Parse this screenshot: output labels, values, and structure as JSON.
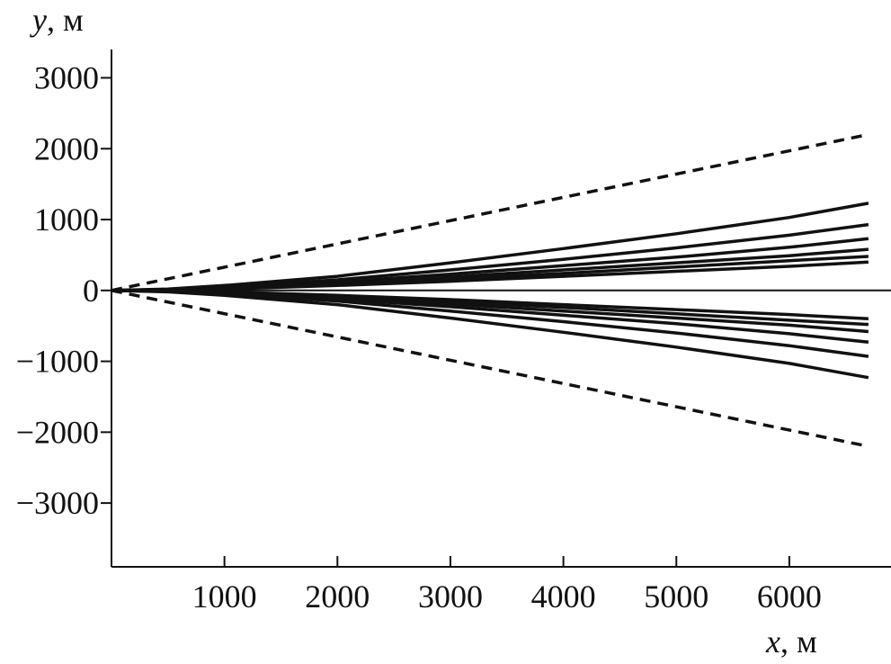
{
  "chart_data": {
    "type": "line",
    "xlabel_var": "x",
    "xlabel_unit": ", м",
    "ylabel_var": "y",
    "ylabel_unit": ", м",
    "xlim": [
      0,
      6900
    ],
    "ylim": [
      -3900,
      3400
    ],
    "x_ticks": [
      {
        "value": 1000,
        "label": "1000"
      },
      {
        "value": 2000,
        "label": "2000"
      },
      {
        "value": 3000,
        "label": "3000"
      },
      {
        "value": 4000,
        "label": "4000"
      },
      {
        "value": 5000,
        "label": "5000"
      },
      {
        "value": 6000,
        "label": "6000"
      }
    ],
    "y_ticks": [
      {
        "value": 3000,
        "label": "3000"
      },
      {
        "value": 2000,
        "label": "2000"
      },
      {
        "value": 1000,
        "label": "1000"
      },
      {
        "value": 0,
        "label": "0"
      },
      {
        "value": -1000,
        "label": "−1000"
      },
      {
        "value": -2000,
        "label": "−2000"
      },
      {
        "value": -3000,
        "label": "−3000"
      }
    ],
    "zero_line": true,
    "series": [
      {
        "style": "dashed",
        "x": [
          0,
          6700
        ],
        "y": [
          0,
          2200
        ]
      },
      {
        "style": "dashed",
        "x": [
          0,
          6700
        ],
        "y": [
          0,
          -2200
        ]
      },
      {
        "style": "solid",
        "x": [
          0,
          500,
          1000,
          2000,
          3000,
          4000,
          5000,
          6000,
          6700
        ],
        "y": [
          0,
          20,
          70,
          200,
          390,
          590,
          800,
          1030,
          1230
        ]
      },
      {
        "style": "solid",
        "x": [
          0,
          500,
          1000,
          2000,
          3000,
          4000,
          5000,
          6000,
          6700
        ],
        "y": [
          0,
          15,
          50,
          150,
          290,
          440,
          600,
          780,
          930
        ]
      },
      {
        "style": "solid",
        "x": [
          0,
          500,
          1000,
          2000,
          3000,
          4000,
          5000,
          6000,
          6700
        ],
        "y": [
          0,
          10,
          40,
          120,
          230,
          350,
          470,
          610,
          730
        ]
      },
      {
        "style": "solid",
        "x": [
          0,
          500,
          1000,
          2000,
          3000,
          4000,
          5000,
          6000,
          6700
        ],
        "y": [
          0,
          8,
          30,
          100,
          190,
          290,
          390,
          490,
          580
        ]
      },
      {
        "style": "solid",
        "x": [
          0,
          500,
          1000,
          2000,
          3000,
          4000,
          5000,
          6000,
          6700
        ],
        "y": [
          0,
          7,
          25,
          85,
          160,
          240,
          330,
          420,
          480
        ]
      },
      {
        "style": "solid",
        "x": [
          0,
          500,
          1000,
          2000,
          3000,
          4000,
          5000,
          6000,
          6700
        ],
        "y": [
          0,
          5,
          20,
          70,
          130,
          200,
          270,
          340,
          400
        ]
      },
      {
        "style": "solid",
        "x": [
          0,
          500,
          1000,
          2000,
          3000,
          4000,
          5000,
          6000,
          6700
        ],
        "y": [
          0,
          -5,
          -20,
          -70,
          -130,
          -200,
          -270,
          -340,
          -400
        ]
      },
      {
        "style": "solid",
        "x": [
          0,
          500,
          1000,
          2000,
          3000,
          4000,
          5000,
          6000,
          6700
        ],
        "y": [
          0,
          -7,
          -25,
          -85,
          -160,
          -240,
          -330,
          -420,
          -480
        ]
      },
      {
        "style": "solid",
        "x": [
          0,
          500,
          1000,
          2000,
          3000,
          4000,
          5000,
          6000,
          6700
        ],
        "y": [
          0,
          -8,
          -30,
          -100,
          -190,
          -290,
          -390,
          -490,
          -580
        ]
      },
      {
        "style": "solid",
        "x": [
          0,
          500,
          1000,
          2000,
          3000,
          4000,
          5000,
          6000,
          6700
        ],
        "y": [
          0,
          -10,
          -40,
          -120,
          -230,
          -350,
          -470,
          -610,
          -730
        ]
      },
      {
        "style": "solid",
        "x": [
          0,
          500,
          1000,
          2000,
          3000,
          4000,
          5000,
          6000,
          6700
        ],
        "y": [
          0,
          -15,
          -50,
          -150,
          -290,
          -440,
          -600,
          -780,
          -930
        ]
      },
      {
        "style": "solid",
        "x": [
          0,
          500,
          1000,
          2000,
          3000,
          4000,
          5000,
          6000,
          6700
        ],
        "y": [
          0,
          -20,
          -70,
          -200,
          -390,
          -590,
          -800,
          -1030,
          -1230
        ]
      }
    ]
  }
}
